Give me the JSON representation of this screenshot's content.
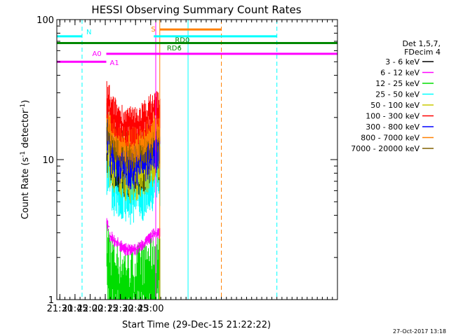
{
  "chart_data": {
    "type": "line",
    "title": "HESSI Observing Summary Count Rates",
    "xlabel": "Start Time (29-Dec-15 21:22:22)",
    "ylabel": "Count Rate (s",
    "ylabel_sup": "-1",
    "ylabel_mid": " detector",
    "ylabel_sup2": "-1",
    "ylabel_end": ")",
    "footer": "27-Oct-2017 13:18",
    "yscale": "log",
    "xlim_min": [
      1287,
      1565
    ],
    "ylim": [
      1,
      100
    ],
    "xticks": [
      {
        "label": "21:30",
        "min": 1290
      },
      {
        "label": "21:45",
        "min": 1305
      },
      {
        "label": "22:00",
        "min": 1320
      },
      {
        "label": "22:15",
        "min": 1335
      },
      {
        "label": "22:30",
        "min": 1350
      },
      {
        "label": "22:45",
        "min": 1365
      },
      {
        "label": "23:00",
        "min": 1380
      }
    ],
    "yticks": [
      {
        "label": "100",
        "v": 100
      },
      {
        "label": "10",
        "v": 10
      },
      {
        "label": "1",
        "v": 1
      }
    ],
    "legend": {
      "title": [
        "Det 1,5,7,",
        "FDecim 4"
      ],
      "entries": [
        {
          "name": "3 - 6 keV",
          "color": "#000000"
        },
        {
          "name": "6 - 12 keV",
          "color": "#ff00ff"
        },
        {
          "name": "12 - 25 keV",
          "color": "#00dd00"
        },
        {
          "name": "25 - 50 keV",
          "color": "#00ffff"
        },
        {
          "name": "50 - 100 keV",
          "color": "#c8c800"
        },
        {
          "name": "100 - 300 keV",
          "color": "#ff0000"
        },
        {
          "name": "300 - 800 keV",
          "color": "#0000ff"
        },
        {
          "name": "800 - 7000 keV",
          "color": "#ff8000"
        },
        {
          "name": "7000 - 20000 keV",
          "color": "#806000"
        }
      ]
    },
    "series_range": {
      "start_min": 1336.5,
      "end_min": 1389.5
    },
    "series": [
      {
        "color": "#00dd00",
        "base": 1.5,
        "spread": 2.2
      },
      {
        "color": "#ff00ff",
        "base": 3.0,
        "spread": 0.9
      },
      {
        "color": "#00ffff",
        "base": 8.0,
        "spread": 1.8
      },
      {
        "color": "#000000",
        "base": 10.5,
        "spread": 1.5
      },
      {
        "color": "#c8c800",
        "base": 11.0,
        "spread": 1.7
      },
      {
        "color": "#0000ff",
        "base": 13.0,
        "spread": 1.6
      },
      {
        "color": "#806000",
        "base": 15.0,
        "spread": 1.4
      },
      {
        "color": "#ff8000",
        "base": 17.5,
        "spread": 1.4
      },
      {
        "color": "#ff0000",
        "base": 23.0,
        "spread": 1.4
      }
    ],
    "flag_bars": [
      {
        "label": "N",
        "color": "#00ffff",
        "y": 76,
        "segments": [
          [
            1287,
            1312
          ],
          [
            1383,
            1505
          ]
        ]
      },
      {
        "label": "S",
        "color": "#ff8000",
        "y": 85,
        "segments": [
          [
            1389,
            1450
          ]
        ]
      },
      {
        "label": "RD0",
        "color": "#008800",
        "y": 68,
        "segments": [
          [
            1287,
            1565
          ]
        ]
      },
      {
        "label": "RD6",
        "color": "#008800",
        "y": 64,
        "segments": [
          [
            1408,
            1409
          ]
        ]
      },
      {
        "label": "A0",
        "color": "#ff00ff",
        "y": 57,
        "segments": [
          [
            1336,
            1565
          ]
        ]
      },
      {
        "label": "A1",
        "color": "#ff00ff",
        "y": 50,
        "segments": [
          [
            1287,
            1336
          ]
        ]
      }
    ],
    "vlines": [
      {
        "min": 1287,
        "color": "#00ffff",
        "style": "solid"
      },
      {
        "min": 1312,
        "color": "#00ffff",
        "style": "dashed"
      },
      {
        "min": 1385,
        "color": "#ff00ff",
        "style": "solid"
      },
      {
        "min": 1389,
        "color": "#ff8000",
        "style": "solid"
      },
      {
        "min": 1417,
        "color": "#00ffff",
        "style": "solid"
      },
      {
        "min": 1450,
        "color": "#ff8000",
        "style": "dashed"
      },
      {
        "min": 1505,
        "color": "#00ffff",
        "style": "dashed"
      }
    ]
  }
}
